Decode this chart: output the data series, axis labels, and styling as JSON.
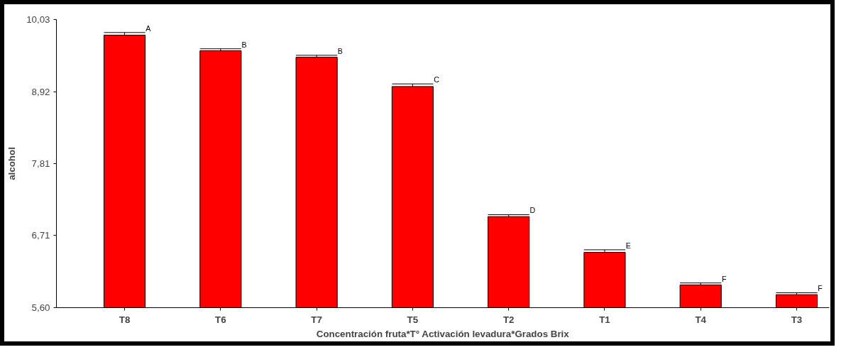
{
  "chart_data": {
    "type": "bar",
    "xlabel": "Concentración fruta*T° Activación levadura*Grados Brix",
    "ylabel": "alcohol",
    "categories": [
      "T8",
      "T6",
      "T7",
      "T5",
      "T2",
      "T1",
      "T4",
      "T3"
    ],
    "values": [
      9.79,
      9.55,
      9.45,
      9.0,
      7.0,
      6.45,
      5.95,
      5.8
    ],
    "errors": [
      [
        9.79,
        9.83
      ],
      [
        9.55,
        9.58
      ],
      [
        9.45,
        9.48
      ],
      [
        9.0,
        9.04
      ],
      [
        7.0,
        7.03
      ],
      [
        6.45,
        6.49
      ],
      [
        5.95,
        5.98
      ],
      [
        5.8,
        5.83
      ]
    ],
    "color": "#ff0000",
    "ylim": [
      5.6,
      10.03
    ],
    "yticks": [
      {
        "value": 5.6,
        "label": "5,60"
      },
      {
        "value": 6.71,
        "label": "6,71"
      },
      {
        "value": 7.81,
        "label": "7,81"
      },
      {
        "value": 8.92,
        "label": "8,92"
      },
      {
        "value": 10.03,
        "label": "10,03"
      }
    ],
    "annotations": [
      {
        "text": "A",
        "x": "T8",
        "y": 9.83
      },
      {
        "text": "B",
        "x": "T6",
        "y": 9.58
      },
      {
        "text": "B",
        "x": "T7",
        "y": 9.48
      },
      {
        "text": "C",
        "x": "T5",
        "y": 9.04
      },
      {
        "text": "D",
        "x": "T2",
        "y": 7.03
      },
      {
        "text": "E",
        "x": "T1",
        "y": 6.49
      },
      {
        "text": "F",
        "x": "T4",
        "y": 5.98
      },
      {
        "text": "F",
        "x": "T3",
        "y": 5.83
      }
    ],
    "grid": false
  }
}
